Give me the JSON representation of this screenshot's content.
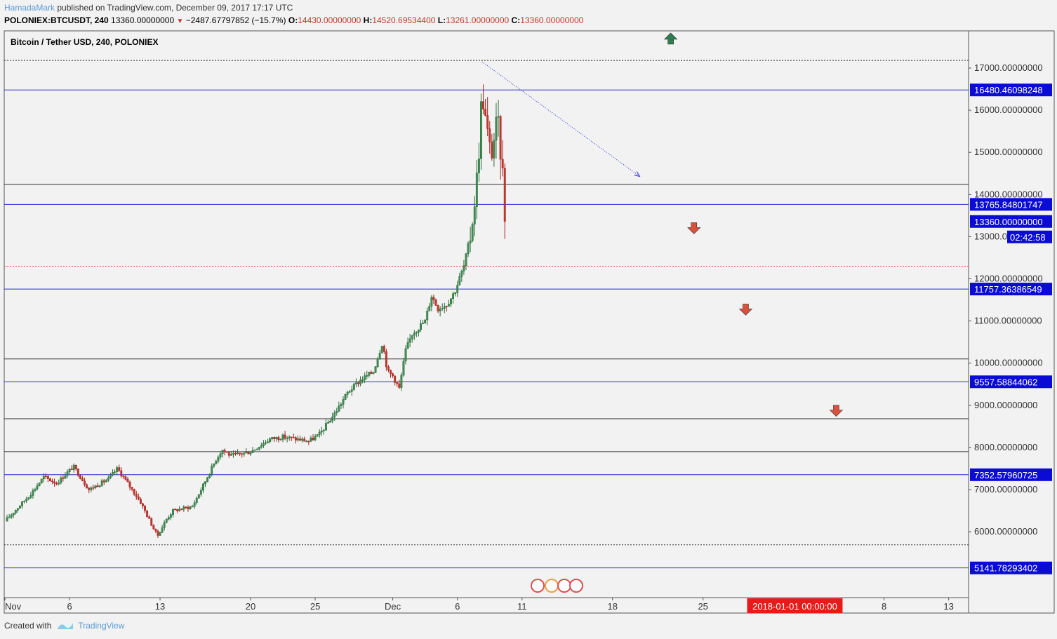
{
  "header": {
    "author": "HamadaMark",
    "published_text": "published on TradingView.com, December 09, 2017 17:17 UTC",
    "symbol": "POLONIEX:BTCUSDT, 240",
    "last": "13360.00000000",
    "change": "−2487.67797852 (−15.7%)",
    "o_label": "O:",
    "o_value": "14430.00000000",
    "h_label": "H:",
    "h_value": "14520.69534400",
    "l_label": "L:",
    "l_value": "13261.00000000",
    "c_label": "C:",
    "c_value": "13360.00000000"
  },
  "footer": {
    "created_with": "Created with",
    "brand": "TradingView"
  },
  "chart_data": {
    "type": "candlestick",
    "title": "Bitcoin / Tether USD, 240, POLONIEX",
    "ylim": [
      5000,
      17500
    ],
    "y_ticks": [
      {
        "value": 6000,
        "label": "6000.00000000"
      },
      {
        "value": 7000,
        "label": "7000.00000000"
      },
      {
        "value": 8000,
        "label": "8000.00000000"
      },
      {
        "value": 9000,
        "label": "9000.00000000"
      },
      {
        "value": 10000,
        "label": "10000.00000000"
      },
      {
        "value": 11000,
        "label": "11000.00000000"
      },
      {
        "value": 12000,
        "label": "12000.00000000"
      },
      {
        "value": 13000,
        "label": "13000.00000000"
      },
      {
        "value": 14000,
        "label": "14000.00000000"
      },
      {
        "value": 15000,
        "label": "15000.00000000"
      },
      {
        "value": 16000,
        "label": "16000.00000000"
      },
      {
        "value": 17000,
        "label": "17000.00000000"
      }
    ],
    "x_ticks": [
      {
        "day": 0,
        "label": "Nov"
      },
      {
        "day": 5,
        "label": "6"
      },
      {
        "day": 12,
        "label": "13"
      },
      {
        "day": 19,
        "label": "20"
      },
      {
        "day": 24,
        "label": "25"
      },
      {
        "day": 30,
        "label": "Dec"
      },
      {
        "day": 35,
        "label": "6"
      },
      {
        "day": 40,
        "label": "11"
      },
      {
        "day": 47,
        "label": "18"
      },
      {
        "day": 54,
        "label": "25"
      },
      {
        "day": 68,
        "label": "8"
      },
      {
        "day": 73,
        "label": "13"
      }
    ],
    "x_cursor_label": "2018-01-01 00:00:00",
    "price_labels": [
      {
        "value": 16480.46098248,
        "label": "16480.46098248",
        "color": "#0b0bd6"
      },
      {
        "value": 13765.84801747,
        "label": "13765.84801747",
        "color": "#0b0bd6"
      },
      {
        "value": 13360.0,
        "label": "13360.00000000",
        "color": "#0b0bd6"
      },
      {
        "value": 11757.36386549,
        "label": "11757.36386549",
        "color": "#0b0bd6"
      },
      {
        "value": 9557.58844062,
        "label": "9557.58844062",
        "color": "#0b0bd6"
      },
      {
        "value": 7352.57960725,
        "label": "7352.57960725",
        "color": "#0b0bd6"
      },
      {
        "value": 5141.78293402,
        "label": "5141.78293402",
        "color": "#0b0bd6"
      }
    ],
    "countdown_label": "02:42:58",
    "blue_lines": [
      16480.46098248,
      13765.84801747,
      11757.36386549,
      9557.58844062,
      7352.57960725,
      5141.78293402
    ],
    "black_lines": [
      14240,
      10100,
      8680,
      7900
    ],
    "dotted_black_lines": [
      17180,
      5690
    ],
    "dotted_red_lines": [
      12300
    ],
    "trend_arrow": {
      "from": {
        "day": 36.9,
        "value": 17150
      },
      "to": {
        "day": 49.1,
        "value": 14430
      }
    },
    "signal_arrows": [
      {
        "direction": "up",
        "day": 51.5,
        "value": 17700,
        "color": "#2e7d4f"
      },
      {
        "direction": "down",
        "day": 53.3,
        "value": 13200,
        "color": "#d9513c"
      },
      {
        "direction": "down",
        "day": 57.3,
        "value": 11270,
        "color": "#d9513c"
      },
      {
        "direction": "down",
        "day": 64.3,
        "value": 8870,
        "color": "#d9513c"
      }
    ],
    "anchor_points": [
      {
        "day": 0.0,
        "value": 6250
      },
      {
        "day": 2.0,
        "value": 6900
      },
      {
        "day": 3.0,
        "value": 7300
      },
      {
        "day": 4.0,
        "value": 7150
      },
      {
        "day": 5.3,
        "value": 7550
      },
      {
        "day": 6.5,
        "value": 7000
      },
      {
        "day": 8.0,
        "value": 7250
      },
      {
        "day": 8.7,
        "value": 7500
      },
      {
        "day": 9.5,
        "value": 7150
      },
      {
        "day": 10.5,
        "value": 6700
      },
      {
        "day": 11.3,
        "value": 6200
      },
      {
        "day": 11.8,
        "value": 5900
      },
      {
        "day": 12.5,
        "value": 6300
      },
      {
        "day": 13.0,
        "value": 6500
      },
      {
        "day": 14.5,
        "value": 6600
      },
      {
        "day": 15.5,
        "value": 7200
      },
      {
        "day": 16.3,
        "value": 7700
      },
      {
        "day": 16.8,
        "value": 7950
      },
      {
        "day": 17.5,
        "value": 7800
      },
      {
        "day": 19.0,
        "value": 7900
      },
      {
        "day": 20.5,
        "value": 8200
      },
      {
        "day": 21.5,
        "value": 8250
      },
      {
        "day": 23.5,
        "value": 8150
      },
      {
        "day": 24.3,
        "value": 8300
      },
      {
        "day": 25.5,
        "value": 8800
      },
      {
        "day": 26.5,
        "value": 9300
      },
      {
        "day": 27.5,
        "value": 9600
      },
      {
        "day": 28.5,
        "value": 9800
      },
      {
        "day": 29.2,
        "value": 10500
      },
      {
        "day": 29.6,
        "value": 9800
      },
      {
        "day": 30.0,
        "value": 9700
      },
      {
        "day": 30.5,
        "value": 9400
      },
      {
        "day": 31.0,
        "value": 10300
      },
      {
        "day": 31.5,
        "value": 10700
      },
      {
        "day": 32.5,
        "value": 11000
      },
      {
        "day": 33.0,
        "value": 11600
      },
      {
        "day": 33.5,
        "value": 11300
      },
      {
        "day": 34.2,
        "value": 11400
      },
      {
        "day": 34.8,
        "value": 11700
      },
      {
        "day": 35.5,
        "value": 12300
      },
      {
        "day": 36.0,
        "value": 13000
      },
      {
        "day": 36.4,
        "value": 14000
      },
      {
        "day": 36.7,
        "value": 15200
      },
      {
        "day": 36.9,
        "value": 16500
      },
      {
        "day": 37.2,
        "value": 15700
      },
      {
        "day": 37.6,
        "value": 14900
      },
      {
        "day": 38.1,
        "value": 15800
      },
      {
        "day": 38.5,
        "value": 14500
      },
      {
        "day": 38.8,
        "value": 13360
      }
    ]
  }
}
